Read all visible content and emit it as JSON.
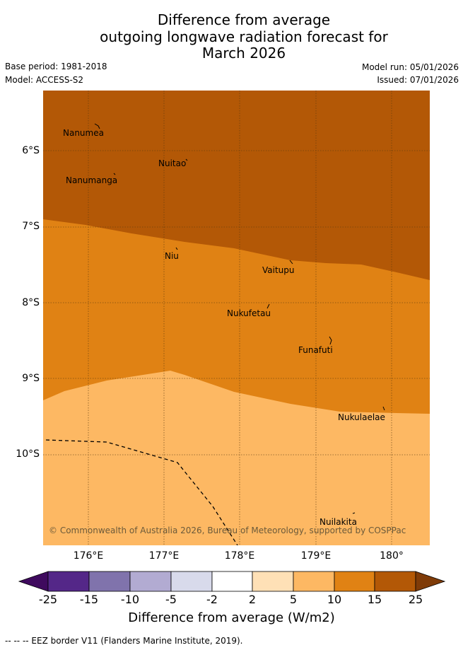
{
  "title": {
    "line1": "Difference from average",
    "line2": "outgoing longwave radiation forecast for",
    "line3": "March 2026"
  },
  "meta": {
    "base_period": "Base period: 1981-2018",
    "model": "Model: ACCESS-S2",
    "model_run": "Model run: 05/01/2026",
    "issued": "Issued: 07/01/2026"
  },
  "map": {
    "lat_labels": [
      "6°S",
      "7°S",
      "8°S",
      "9°S",
      "10°S"
    ],
    "lon_labels": [
      "176°E",
      "177°E",
      "178°E",
      "179°E",
      "180°"
    ],
    "islands": [
      "Nanumea",
      "Nuitao",
      "Nanumanga",
      "Niu",
      "Vaitupu",
      "Nukufetau",
      "Funafuti",
      "Nukulaelae",
      "Nuilakita"
    ],
    "copyright": "© Commonwealth of Australia 2026, Bureau of Meteorology, supported by COSPPac",
    "zone_colors": {
      "above_15": "#b35806",
      "10_to_15": "#e08214",
      "5_to_10": "#fdb863"
    }
  },
  "colorbar": {
    "labels": [
      "-25",
      "-15",
      "-10",
      "-5",
      "-2",
      "2",
      "5",
      "10",
      "15",
      "25"
    ],
    "colors": [
      "#3f0a5e",
      "#542788",
      "#8073ac",
      "#b2abd2",
      "#d8daeb",
      "#ffffff",
      "#fee0b6",
      "#fdb863",
      "#e08214",
      "#b35806",
      "#7f3b08"
    ],
    "title": "Difference from average (W/m2)"
  },
  "footer": "--  --  -- EEZ border V11 (Flanders Marine Institute, 2019)."
}
